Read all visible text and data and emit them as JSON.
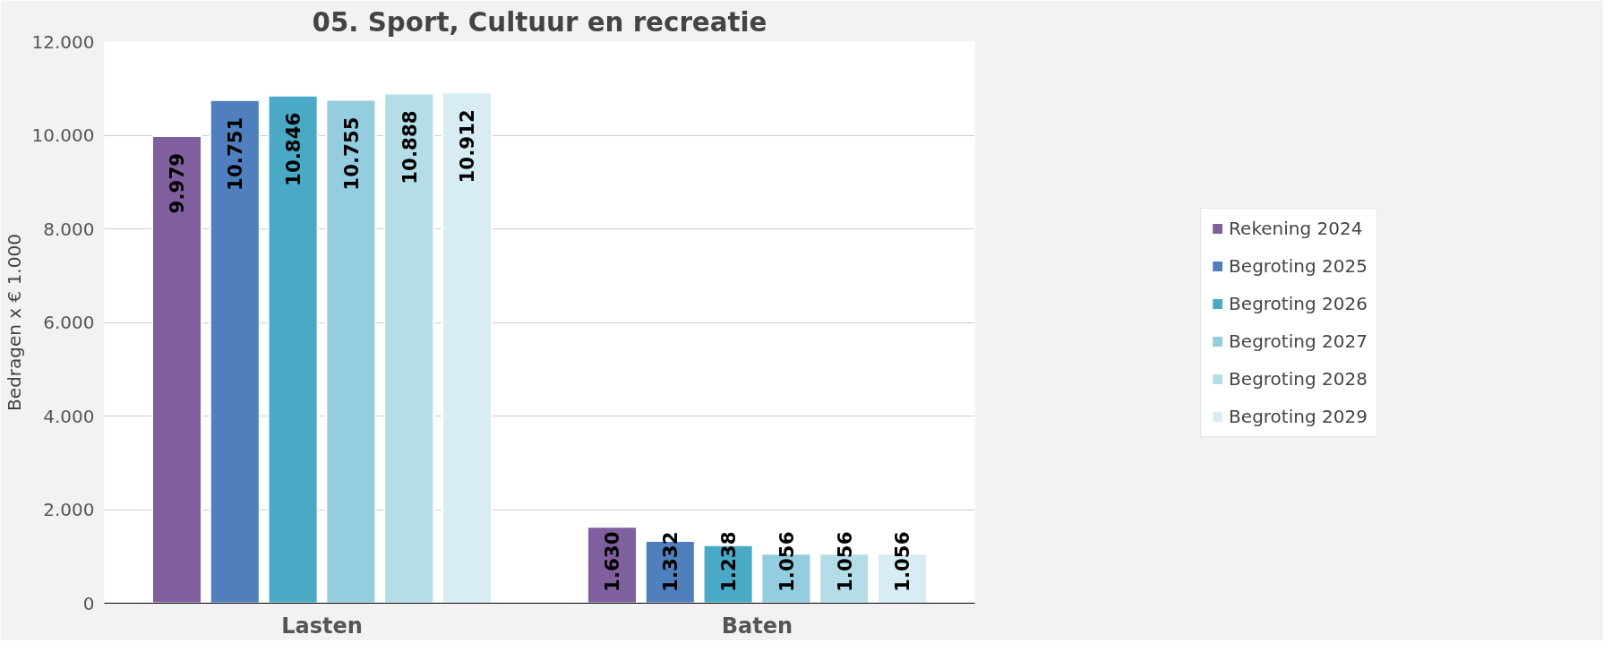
{
  "chart_data": {
    "type": "bar",
    "title": "05. Sport, Cultuur en recreatie",
    "ylabel": "Bedragen x € 1.000",
    "categories": [
      "Lasten",
      "Baten"
    ],
    "ylim": [
      0,
      12000
    ],
    "yticks": [
      {
        "value": 0,
        "label": "0"
      },
      {
        "value": 2000,
        "label": "2.000"
      },
      {
        "value": 4000,
        "label": "4.000"
      },
      {
        "value": 6000,
        "label": "6.000"
      },
      {
        "value": 8000,
        "label": "8.000"
      },
      {
        "value": 10000,
        "label": "10.000"
      },
      {
        "value": 12000,
        "label": "12.000"
      }
    ],
    "grid": "y",
    "legend": "right",
    "series": [
      {
        "name": "Rekening 2024",
        "color": "#7f5f9e",
        "values": [
          9979,
          1630
        ],
        "value_labels": [
          "9.979",
          "1.630"
        ]
      },
      {
        "name": "Begroting 2025",
        "color": "#4f7fbd",
        "values": [
          10751,
          1332
        ],
        "value_labels": [
          "10.751",
          "1.332"
        ]
      },
      {
        "name": "Begroting 2026",
        "color": "#4aaac6",
        "values": [
          10846,
          1238
        ],
        "value_labels": [
          "10.846",
          "1.238"
        ]
      },
      {
        "name": "Begroting 2027",
        "color": "#93cddf",
        "values": [
          10755,
          1056
        ],
        "value_labels": [
          "10.755",
          "1.056"
        ]
      },
      {
        "name": "Begroting 2028",
        "color": "#b5dde8",
        "values": [
          10888,
          1056
        ],
        "value_labels": [
          "10.888",
          "1.056"
        ]
      },
      {
        "name": "Begroting 2029",
        "color": "#d7edf3",
        "values": [
          10912,
          1056
        ],
        "value_labels": [
          "10.912",
          "1.056"
        ]
      }
    ]
  }
}
